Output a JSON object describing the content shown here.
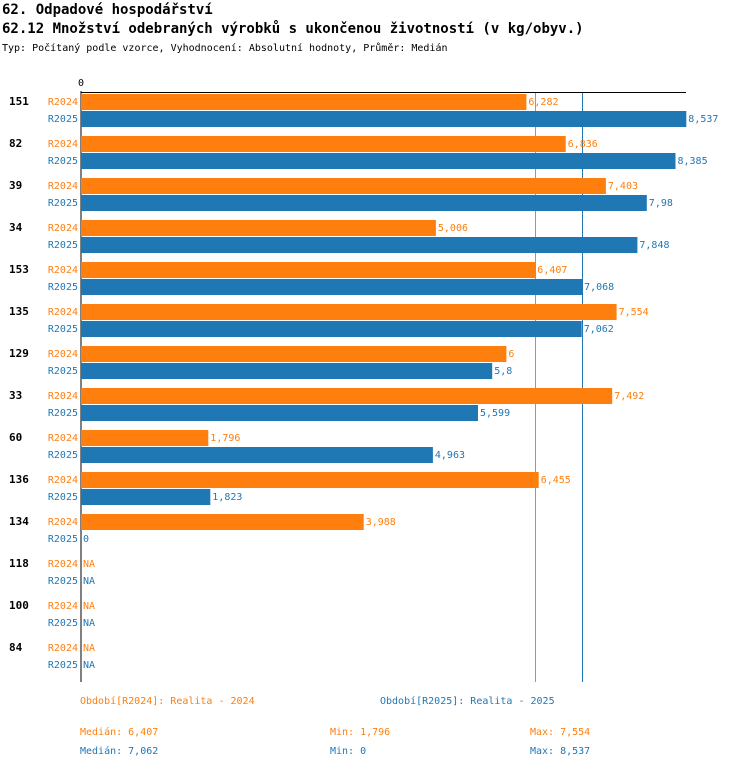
{
  "header": {
    "title": "62. Odpadové hospodářství",
    "subtitle": "62.12 Množství odebraných výrobků s ukončenou životností (v kg/obyv.)",
    "meta": "Typ: Počítaný podle vzorce, Vyhodnocení: Absolutní hodnoty, Průměr: Medián"
  },
  "chart_data": {
    "type": "bar",
    "orientation": "horizontal",
    "title": "62.12 Množství odebraných výrobků s ukončenou životností (v kg/obyv.)",
    "axis_tick_label": "0",
    "xlim": [
      0,
      8.537
    ],
    "categories": [
      "151",
      "82",
      "39",
      "34",
      "153",
      "135",
      "129",
      "33",
      "60",
      "136",
      "134",
      "118",
      "100",
      "84"
    ],
    "series": [
      {
        "name": "R2024",
        "color": "#ff7f0e",
        "values": [
          6.282,
          6.836,
          7.403,
          5.006,
          6.407,
          7.554,
          6,
          7.492,
          1.796,
          6.455,
          3.988,
          null,
          null,
          null
        ],
        "labels": [
          "6,282",
          "6,836",
          "7,403",
          "5,006",
          "6,407",
          "7,554",
          "6",
          "7,492",
          "1,796",
          "6,455",
          "3,988",
          "NA",
          "NA",
          "NA"
        ]
      },
      {
        "name": "R2025",
        "color": "#1f77b4",
        "values": [
          8.537,
          8.385,
          7.98,
          7.848,
          7.068,
          7.062,
          5.8,
          5.599,
          4.963,
          1.823,
          0,
          null,
          null,
          null
        ],
        "labels": [
          "8,537",
          "8,385",
          "7,98",
          "7,848",
          "7,068",
          "7,062",
          "5,8",
          "5,599",
          "4,963",
          "1,823",
          "0",
          "NA",
          "NA",
          "NA"
        ]
      }
    ],
    "reference_lines": [
      {
        "series": "R2024",
        "value": 6.407
      },
      {
        "series": "R2025",
        "value": 7.062
      }
    ]
  },
  "legend": {
    "r2024_label": "Období[R2024]: Realita - 2024",
    "r2025_label": "Období[R2025]: Realita - 2025",
    "stats": {
      "r2024": {
        "median": "Medián: 6,407",
        "min": "Min: 1,796",
        "max": "Max: 7,554"
      },
      "r2025": {
        "median": "Medián: 7,062",
        "min": "Min: 0",
        "max": "Max: 8,537"
      }
    }
  }
}
